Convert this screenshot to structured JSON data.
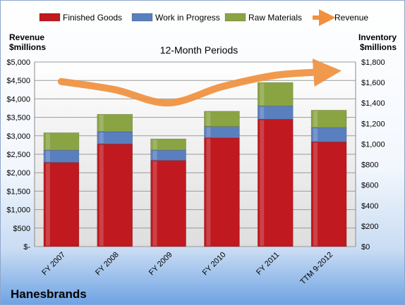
{
  "chart_data": {
    "type": "bar",
    "stacked": true,
    "title": "12-Month Periods",
    "company": "Hanesbrands",
    "left_axis_label": [
      "Revenue",
      "$millions"
    ],
    "right_axis_label": [
      "Inventory",
      "$millions"
    ],
    "categories": [
      "FY 2007",
      "FY 2008",
      "FY 2009",
      "FY 2010",
      "FY 2011",
      "TTM 9-2012"
    ],
    "series": [
      {
        "name": "Finished Goods",
        "axis": "right",
        "color": "#c0191f",
        "values": [
          820,
          1000,
          840,
          1060,
          1240,
          1020
        ]
      },
      {
        "name": "Work in Progress",
        "axis": "right",
        "color": "#5a7fbf",
        "values": [
          120,
          120,
          100,
          110,
          130,
          140
        ]
      },
      {
        "name": "Raw Materials",
        "axis": "right",
        "color": "#8aa443",
        "values": [
          170,
          170,
          110,
          150,
          230,
          170
        ]
      }
    ],
    "line_series": {
      "name": "Revenue",
      "axis": "left",
      "color": "#f0913f",
      "values": [
        4470,
        4250,
        3890,
        4330,
        4640,
        4740
      ]
    },
    "left_axis": {
      "min": 0,
      "max": 5000,
      "step": 500,
      "tick_labels": [
        "$-",
        "$500",
        "$1,000",
        "$1,500",
        "$2,000",
        "$2,500",
        "$3,000",
        "$3,500",
        "$4,000",
        "$4,500",
        "$5,000"
      ]
    },
    "right_axis": {
      "min": 0,
      "max": 1800,
      "step": 200,
      "tick_labels": [
        "$0",
        "$200",
        "$400",
        "$600",
        "$800",
        "$1,000",
        "$1,200",
        "$1,400",
        "$1,600",
        "$1,800"
      ]
    },
    "grid": true,
    "legend_position": "top"
  }
}
